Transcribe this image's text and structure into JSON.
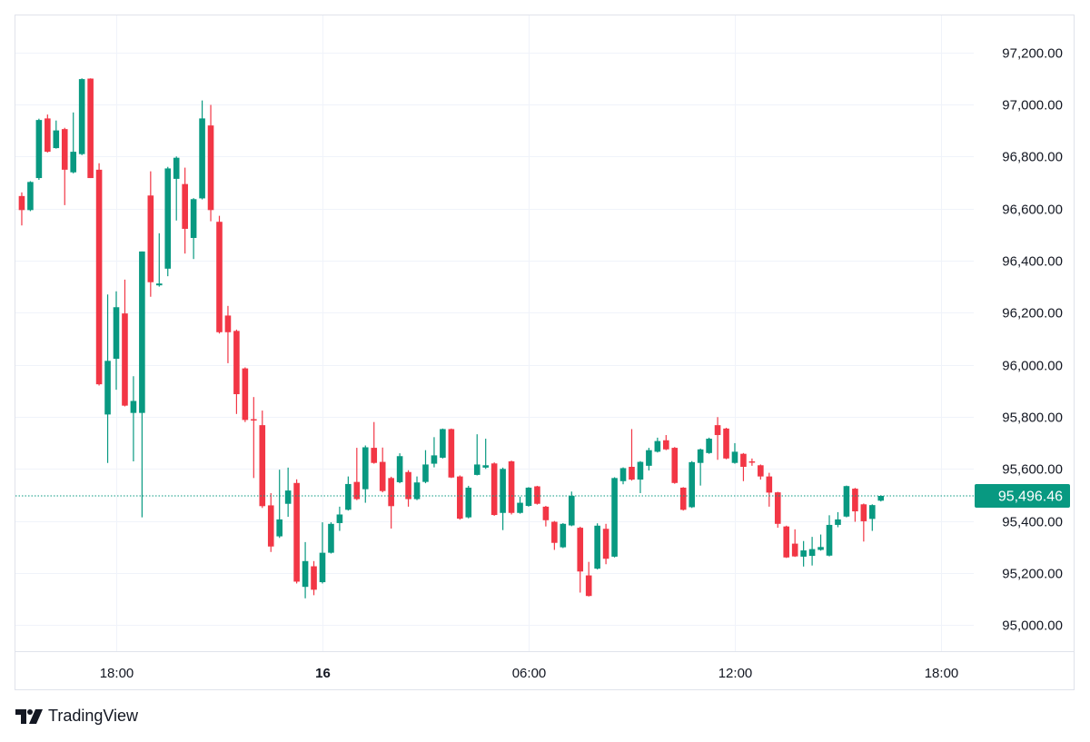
{
  "brand": {
    "name": "TradingView",
    "logo_icon": "tradingview-logo-icon"
  },
  "chart_data": {
    "type": "candlestick",
    "interval": "15m",
    "colors": {
      "up": "#089981",
      "down": "#f23645",
      "grid": "#f0f3fa",
      "text": "#131722",
      "last_price_line": "#089981"
    },
    "ylim": [
      94900,
      97345
    ],
    "y_ticks": [
      {
        "value": 97200,
        "label": "97,200.00"
      },
      {
        "value": 97000,
        "label": "97,000.00"
      },
      {
        "value": 96800,
        "label": "96,800.00"
      },
      {
        "value": 96600,
        "label": "96,600.00"
      },
      {
        "value": 96400,
        "label": "96,400.00"
      },
      {
        "value": 96200,
        "label": "96,200.00"
      },
      {
        "value": 96000,
        "label": "96,000.00"
      },
      {
        "value": 95800,
        "label": "95,800.00"
      },
      {
        "value": 95600,
        "label": "95,600.00"
      },
      {
        "value": 95400,
        "label": "95,400.00"
      },
      {
        "value": 95200,
        "label": "95,200.00"
      },
      {
        "value": 95000,
        "label": "95,000.00"
      }
    ],
    "x_ticks": [
      {
        "time": "18:00",
        "label": "18:00",
        "bold": false
      },
      {
        "time": "00:00",
        "label": "16",
        "bold": true
      },
      {
        "time": "06:00",
        "label": "06:00",
        "bold": false
      },
      {
        "time": "12:00",
        "label": "12:00",
        "bold": false
      },
      {
        "time": "18:00",
        "label": "18:00",
        "bold": false
      }
    ],
    "last_price": {
      "value": 95496.46,
      "label": "95,496.46"
    },
    "grid": true,
    "candles": [
      {
        "t": "15:15",
        "o": 96648,
        "h": 96662,
        "l": 96535,
        "c": 96594
      },
      {
        "t": "15:30",
        "o": 96594,
        "h": 96705,
        "l": 96590,
        "c": 96702
      },
      {
        "t": "15:45",
        "o": 96717,
        "h": 96945,
        "l": 96710,
        "c": 96940
      },
      {
        "t": "16:00",
        "o": 96946,
        "h": 96961,
        "l": 96815,
        "c": 96818
      },
      {
        "t": "16:15",
        "o": 96832,
        "h": 96938,
        "l": 96830,
        "c": 96900
      },
      {
        "t": "16:30",
        "o": 96905,
        "h": 96910,
        "l": 96613,
        "c": 96749
      },
      {
        "t": "16:45",
        "o": 96739,
        "h": 96969,
        "l": 96735,
        "c": 96818
      },
      {
        "t": "17:00",
        "o": 96809,
        "h": 97100,
        "l": 96805,
        "c": 97097
      },
      {
        "t": "17:15",
        "o": 97099,
        "h": 97100,
        "l": 96717,
        "c": 96717
      },
      {
        "t": "17:30",
        "o": 96749,
        "h": 96774,
        "l": 95920,
        "c": 95925
      },
      {
        "t": "17:45",
        "o": 95809,
        "h": 96270,
        "l": 95623,
        "c": 96015
      },
      {
        "t": "18:00",
        "o": 96023,
        "h": 96282,
        "l": 95904,
        "c": 96221
      },
      {
        "t": "18:15",
        "o": 96197,
        "h": 96327,
        "l": 95840,
        "c": 95843
      },
      {
        "t": "18:30",
        "o": 95815,
        "h": 95956,
        "l": 95629,
        "c": 95861
      },
      {
        "t": "18:45",
        "o": 95815,
        "h": 96435,
        "l": 95414,
        "c": 96435
      },
      {
        "t": "19:00",
        "o": 96650,
        "h": 96743,
        "l": 96261,
        "c": 96317
      },
      {
        "t": "19:15",
        "o": 96305,
        "h": 96505,
        "l": 96300,
        "c": 96312
      },
      {
        "t": "19:30",
        "o": 96369,
        "h": 96760,
        "l": 96340,
        "c": 96754
      },
      {
        "t": "19:45",
        "o": 96714,
        "h": 96800,
        "l": 96554,
        "c": 96795
      },
      {
        "t": "20:00",
        "o": 96694,
        "h": 96757,
        "l": 96427,
        "c": 96522
      },
      {
        "t": "20:15",
        "o": 96487,
        "h": 96640,
        "l": 96406,
        "c": 96636
      },
      {
        "t": "20:30",
        "o": 96639,
        "h": 97015,
        "l": 96635,
        "c": 96946
      },
      {
        "t": "20:45",
        "o": 96919,
        "h": 96998,
        "l": 96551,
        "c": 96594
      },
      {
        "t": "21:00",
        "o": 96549,
        "h": 96572,
        "l": 96120,
        "c": 96125
      },
      {
        "t": "21:15",
        "o": 96189,
        "h": 96226,
        "l": 96006,
        "c": 96125
      },
      {
        "t": "21:30",
        "o": 96130,
        "h": 96135,
        "l": 95811,
        "c": 95887
      },
      {
        "t": "21:45",
        "o": 95986,
        "h": 95990,
        "l": 95780,
        "c": 95788
      },
      {
        "t": "22:00",
        "o": 95791,
        "h": 95876,
        "l": 95565,
        "c": 95786
      },
      {
        "t": "22:15",
        "o": 95768,
        "h": 95824,
        "l": 95450,
        "c": 95457
      },
      {
        "t": "22:30",
        "o": 95460,
        "h": 95507,
        "l": 95281,
        "c": 95302
      },
      {
        "t": "22:45",
        "o": 95341,
        "h": 95597,
        "l": 95335,
        "c": 95406
      },
      {
        "t": "23:00",
        "o": 95466,
        "h": 95605,
        "l": 95416,
        "c": 95517
      },
      {
        "t": "23:15",
        "o": 95546,
        "h": 95560,
        "l": 95160,
        "c": 95167
      },
      {
        "t": "23:30",
        "o": 95147,
        "h": 95319,
        "l": 95103,
        "c": 95246
      },
      {
        "t": "23:45",
        "o": 95226,
        "h": 95246,
        "l": 95115,
        "c": 95136
      },
      {
        "t": "00:00",
        "o": 95165,
        "h": 95395,
        "l": 95160,
        "c": 95278
      },
      {
        "t": "00:15",
        "o": 95278,
        "h": 95395,
        "l": 95275,
        "c": 95389
      },
      {
        "t": "00:30",
        "o": 95392,
        "h": 95455,
        "l": 95362,
        "c": 95425
      },
      {
        "t": "00:45",
        "o": 95443,
        "h": 95571,
        "l": 95440,
        "c": 95542
      },
      {
        "t": "01:00",
        "o": 95550,
        "h": 95681,
        "l": 95480,
        "c": 95484
      },
      {
        "t": "01:15",
        "o": 95522,
        "h": 95690,
        "l": 95470,
        "c": 95683
      },
      {
        "t": "01:30",
        "o": 95681,
        "h": 95780,
        "l": 95620,
        "c": 95623
      },
      {
        "t": "01:45",
        "o": 95627,
        "h": 95682,
        "l": 95510,
        "c": 95515
      },
      {
        "t": "02:00",
        "o": 95565,
        "h": 95570,
        "l": 95371,
        "c": 95457
      },
      {
        "t": "02:15",
        "o": 95549,
        "h": 95660,
        "l": 95545,
        "c": 95649
      },
      {
        "t": "02:30",
        "o": 95588,
        "h": 95595,
        "l": 95455,
        "c": 95484
      },
      {
        "t": "02:45",
        "o": 95484,
        "h": 95571,
        "l": 95480,
        "c": 95548
      },
      {
        "t": "03:00",
        "o": 95550,
        "h": 95672,
        "l": 95545,
        "c": 95617
      },
      {
        "t": "03:15",
        "o": 95620,
        "h": 95722,
        "l": 95606,
        "c": 95652
      },
      {
        "t": "03:30",
        "o": 95643,
        "h": 95755,
        "l": 95640,
        "c": 95753
      },
      {
        "t": "03:45",
        "o": 95753,
        "h": 95755,
        "l": 95565,
        "c": 95567
      },
      {
        "t": "04:00",
        "o": 95571,
        "h": 95575,
        "l": 95405,
        "c": 95409
      },
      {
        "t": "04:15",
        "o": 95414,
        "h": 95535,
        "l": 95410,
        "c": 95528
      },
      {
        "t": "04:30",
        "o": 95577,
        "h": 95733,
        "l": 95575,
        "c": 95617
      },
      {
        "t": "04:45",
        "o": 95605,
        "h": 95716,
        "l": 95600,
        "c": 95614
      },
      {
        "t": "05:00",
        "o": 95621,
        "h": 95625,
        "l": 95420,
        "c": 95423
      },
      {
        "t": "05:15",
        "o": 95431,
        "h": 95605,
        "l": 95365,
        "c": 95600
      },
      {
        "t": "05:30",
        "o": 95629,
        "h": 95632,
        "l": 95425,
        "c": 95431
      },
      {
        "t": "05:45",
        "o": 95431,
        "h": 95493,
        "l": 95428,
        "c": 95470
      },
      {
        "t": "06:00",
        "o": 95458,
        "h": 95530,
        "l": 95455,
        "c": 95528
      },
      {
        "t": "06:15",
        "o": 95533,
        "h": 95535,
        "l": 95463,
        "c": 95466
      },
      {
        "t": "06:30",
        "o": 95455,
        "h": 95458,
        "l": 95379,
        "c": 95403
      },
      {
        "t": "06:45",
        "o": 95397,
        "h": 95400,
        "l": 95289,
        "c": 95316
      },
      {
        "t": "07:00",
        "o": 95299,
        "h": 95392,
        "l": 95296,
        "c": 95389
      },
      {
        "t": "07:15",
        "o": 95383,
        "h": 95513,
        "l": 95380,
        "c": 95497
      },
      {
        "t": "07:30",
        "o": 95374,
        "h": 95378,
        "l": 95125,
        "c": 95206
      },
      {
        "t": "07:45",
        "o": 95191,
        "h": 95243,
        "l": 95110,
        "c": 95112
      },
      {
        "t": "08:00",
        "o": 95217,
        "h": 95391,
        "l": 95214,
        "c": 95382
      },
      {
        "t": "08:15",
        "o": 95370,
        "h": 95389,
        "l": 95234,
        "c": 95255
      },
      {
        "t": "08:30",
        "o": 95263,
        "h": 95568,
        "l": 95260,
        "c": 95565
      },
      {
        "t": "08:45",
        "o": 95553,
        "h": 95606,
        "l": 95541,
        "c": 95603
      },
      {
        "t": "09:00",
        "o": 95608,
        "h": 95753,
        "l": 95555,
        "c": 95559
      },
      {
        "t": "09:15",
        "o": 95559,
        "h": 95630,
        "l": 95507,
        "c": 95627
      },
      {
        "t": "09:30",
        "o": 95612,
        "h": 95681,
        "l": 95594,
        "c": 95672
      },
      {
        "t": "09:45",
        "o": 95666,
        "h": 95720,
        "l": 95663,
        "c": 95707
      },
      {
        "t": "10:00",
        "o": 95710,
        "h": 95730,
        "l": 95672,
        "c": 95675
      },
      {
        "t": "10:15",
        "o": 95681,
        "h": 95684,
        "l": 95543,
        "c": 95546
      },
      {
        "t": "10:30",
        "o": 95528,
        "h": 95530,
        "l": 95440,
        "c": 95443
      },
      {
        "t": "10:45",
        "o": 95453,
        "h": 95630,
        "l": 95450,
        "c": 95626
      },
      {
        "t": "11:00",
        "o": 95623,
        "h": 95678,
        "l": 95536,
        "c": 95675
      },
      {
        "t": "11:15",
        "o": 95661,
        "h": 95720,
        "l": 95658,
        "c": 95716
      },
      {
        "t": "11:30",
        "o": 95768,
        "h": 95799,
        "l": 95635,
        "c": 95730
      },
      {
        "t": "11:45",
        "o": 95755,
        "h": 95758,
        "l": 95637,
        "c": 95640
      },
      {
        "t": "12:00",
        "o": 95623,
        "h": 95699,
        "l": 95620,
        "c": 95666
      },
      {
        "t": "12:15",
        "o": 95658,
        "h": 95661,
        "l": 95553,
        "c": 95608
      },
      {
        "t": "12:30",
        "o": 95629,
        "h": 95640,
        "l": 95612,
        "c": 95626
      },
      {
        "t": "12:45",
        "o": 95614,
        "h": 95617,
        "l": 95559,
        "c": 95571
      },
      {
        "t": "13:00",
        "o": 95571,
        "h": 95585,
        "l": 95455,
        "c": 95509
      },
      {
        "t": "13:15",
        "o": 95510,
        "h": 95512,
        "l": 95374,
        "c": 95389
      },
      {
        "t": "13:30",
        "o": 95379,
        "h": 95382,
        "l": 95258,
        "c": 95260
      },
      {
        "t": "13:45",
        "o": 95313,
        "h": 95368,
        "l": 95262,
        "c": 95264
      },
      {
        "t": "14:00",
        "o": 95263,
        "h": 95323,
        "l": 95225,
        "c": 95287
      },
      {
        "t": "14:15",
        "o": 95266,
        "h": 95339,
        "l": 95229,
        "c": 95292
      },
      {
        "t": "14:30",
        "o": 95289,
        "h": 95348,
        "l": 95286,
        "c": 95300
      },
      {
        "t": "14:45",
        "o": 95267,
        "h": 95422,
        "l": 95264,
        "c": 95385
      },
      {
        "t": "15:00",
        "o": 95385,
        "h": 95434,
        "l": 95376,
        "c": 95406
      },
      {
        "t": "15:15",
        "o": 95417,
        "h": 95536,
        "l": 95414,
        "c": 95534
      },
      {
        "t": "15:30",
        "o": 95524,
        "h": 95527,
        "l": 95397,
        "c": 95437
      },
      {
        "t": "15:45",
        "o": 95464,
        "h": 95467,
        "l": 95321,
        "c": 95399
      },
      {
        "t": "16:00",
        "o": 95408,
        "h": 95464,
        "l": 95362,
        "c": 95461
      },
      {
        "t": "16:15",
        "o": 95478,
        "h": 95499,
        "l": 95475,
        "c": 95496.46
      }
    ]
  }
}
